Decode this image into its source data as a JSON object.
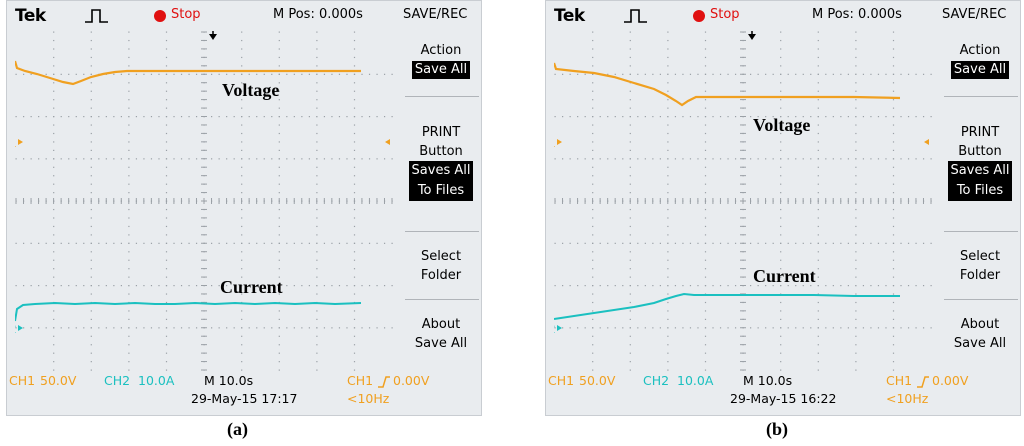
{
  "panels": [
    {
      "id": "a",
      "brand": "Tek",
      "run_state": "Stop",
      "m_pos": "M Pos: 0.000s",
      "menu_title": "SAVE/REC",
      "menu": {
        "action_label": "Action",
        "action_value": "Save All",
        "print_label_1": "PRINT",
        "print_label_2": "Button",
        "print_value_1": "Saves All",
        "print_value_2": "To Files",
        "select_1": "Select",
        "select_2": "Folder",
        "about_1": "About",
        "about_2": "Save All"
      },
      "ch1_marker": "1",
      "ch2_marker": "2",
      "voltage_label": "Voltage",
      "current_label": "Current",
      "bottom": {
        "ch1": "CH1",
        "ch1_scale": "50.0V",
        "ch2": "CH2",
        "ch2_scale": "10.0A",
        "timebase": "M 10.0s",
        "datetime": "29-May-15 17:17",
        "trig_ch": "CH1",
        "trig_level": "0.00V",
        "freq": "<10Hz"
      },
      "caption": "(a)"
    },
    {
      "id": "b",
      "brand": "Tek",
      "run_state": "Stop",
      "m_pos": "M Pos: 0.000s",
      "menu_title": "SAVE/REC",
      "menu": {
        "action_label": "Action",
        "action_value": "Save All",
        "print_label_1": "PRINT",
        "print_label_2": "Button",
        "print_value_1": "Saves All",
        "print_value_2": "To Files",
        "select_1": "Select",
        "select_2": "Folder",
        "about_1": "About",
        "about_2": "Save All"
      },
      "ch1_marker": "1",
      "ch2_marker": "2",
      "voltage_label": "Voltage",
      "current_label": "Current",
      "bottom": {
        "ch1": "CH1",
        "ch1_scale": "50.0V",
        "ch2": "CH2",
        "ch2_scale": "10.0A",
        "timebase": "M 10.0s",
        "datetime": "29-May-15 16:22",
        "trig_ch": "CH1",
        "trig_level": "0.00V",
        "freq": "<10Hz"
      },
      "caption": "(b)"
    }
  ],
  "colors": {
    "ch1": "#f0a020",
    "ch2": "#1bc0c0",
    "stop": "#e01010",
    "grid": "#9aa0a6"
  }
}
